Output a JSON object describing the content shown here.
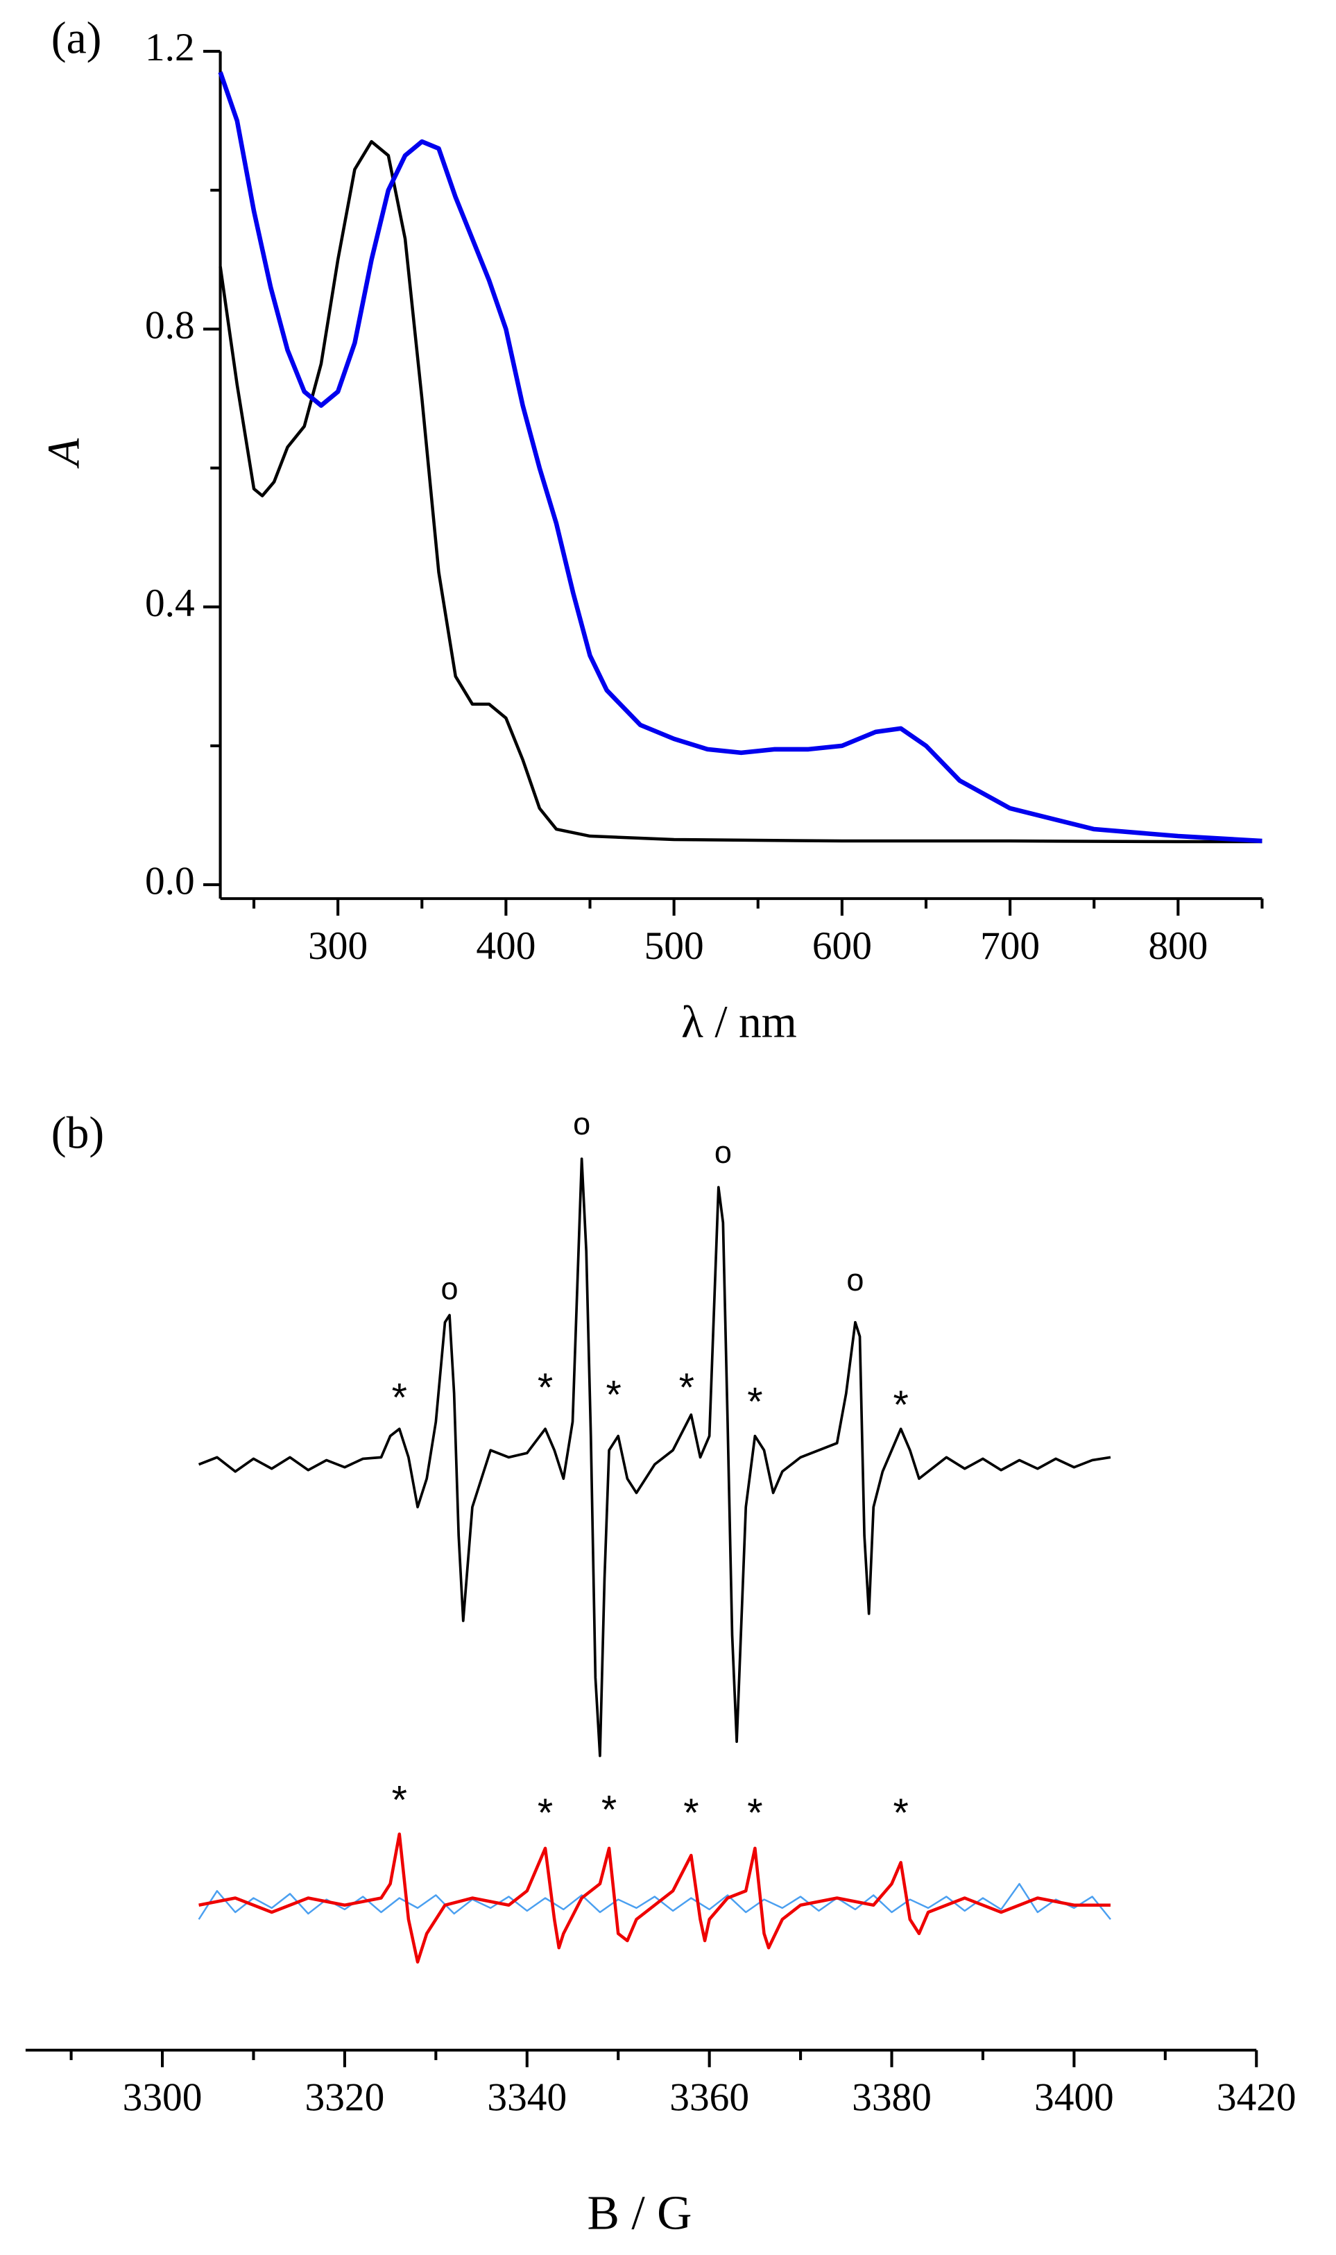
{
  "chart_data": [
    {
      "type": "line",
      "panel_label": "(a)",
      "xlabel": "λ / nm",
      "ylabel": "A",
      "xlim": [
        230,
        850
      ],
      "xticks": [
        300,
        400,
        500,
        600,
        700,
        800
      ],
      "xminor_ticks": [
        250,
        350,
        450,
        550,
        650,
        750,
        850
      ],
      "ylim": [
        -0.02,
        1.2
      ],
      "yticks": [
        {
          "value": 0,
          "label": "0.0"
        },
        0.4,
        0.8,
        1.2
      ],
      "yminor_ticks": [
        0.2,
        0.6,
        1.0
      ],
      "series": [
        {
          "color": "#000000",
          "width": 2.2,
          "x": [
            230,
            240,
            250,
            255,
            262,
            270,
            280,
            290,
            300,
            310,
            320,
            330,
            340,
            350,
            360,
            370,
            380,
            390,
            400,
            410,
            420,
            430,
            450,
            500,
            600,
            700,
            800,
            850
          ],
          "values": [
            0.89,
            0.72,
            0.57,
            0.56,
            0.58,
            0.63,
            0.66,
            0.75,
            0.9,
            1.03,
            1.07,
            1.05,
            0.93,
            0.7,
            0.45,
            0.3,
            0.26,
            0.26,
            0.24,
            0.18,
            0.11,
            0.08,
            0.07,
            0.065,
            0.063,
            0.063,
            0.062,
            0.062
          ]
        },
        {
          "color": "#0000ee",
          "width": 3.2,
          "x": [
            230,
            240,
            250,
            260,
            270,
            280,
            290,
            300,
            310,
            320,
            330,
            340,
            350,
            360,
            370,
            380,
            390,
            400,
            410,
            420,
            430,
            440,
            450,
            460,
            480,
            500,
            520,
            540,
            560,
            580,
            600,
            620,
            635,
            650,
            670,
            700,
            750,
            800,
            850
          ],
          "values": [
            1.17,
            1.1,
            0.97,
            0.86,
            0.77,
            0.71,
            0.69,
            0.71,
            0.78,
            0.9,
            1.0,
            1.05,
            1.07,
            1.06,
            0.99,
            0.93,
            0.87,
            0.8,
            0.69,
            0.6,
            0.52,
            0.42,
            0.33,
            0.28,
            0.23,
            0.21,
            0.195,
            0.19,
            0.195,
            0.195,
            0.2,
            0.22,
            0.225,
            0.2,
            0.15,
            0.11,
            0.08,
            0.07,
            0.063
          ]
        }
      ]
    },
    {
      "type": "line",
      "panel_label": "(b)",
      "xlabel": "B / G",
      "xlim": [
        3285,
        3420
      ],
      "xticks": [
        3300,
        3320,
        3340,
        3360,
        3380,
        3400,
        3420
      ],
      "xminor_ticks": [
        3290,
        3310,
        3330,
        3350,
        3370,
        3390,
        3410
      ],
      "ylim": [
        -3.7,
        2.5
      ],
      "series": [
        {
          "color": "#000000",
          "width": 1.8,
          "x": [
            3304,
            3306,
            3308,
            3310,
            3312,
            3314,
            3316,
            3318,
            3320,
            3322,
            3324,
            3325,
            3326,
            3327,
            3328,
            3329,
            3330,
            3331,
            3331.5,
            3332,
            3332.5,
            3333,
            3334,
            3335,
            3336,
            3338,
            3340,
            3342,
            3343,
            3344,
            3345,
            3346,
            3346.5,
            3347,
            3347.5,
            3348,
            3348.5,
            3349,
            3350,
            3351,
            3352,
            3354,
            3356,
            3358,
            3359,
            3360,
            3361,
            3361.5,
            3362,
            3362.5,
            3363,
            3364,
            3365,
            3366,
            3367,
            3368,
            3370,
            3372,
            3374,
            3375,
            3376,
            3376.5,
            3377,
            3377.5,
            3378,
            3379,
            3380,
            3381,
            3382,
            3383,
            3384,
            3386,
            3388,
            3390,
            3392,
            3394,
            3396,
            3398,
            3400,
            3402,
            3404
          ],
          "values": [
            0,
            0.05,
            -0.05,
            0.04,
            -0.03,
            0.05,
            -0.04,
            0.03,
            -0.02,
            0.04,
            0.05,
            0.2,
            0.25,
            0.05,
            -0.3,
            -0.1,
            0.3,
            1.0,
            1.05,
            0.5,
            -0.5,
            -1.1,
            -0.3,
            -0.1,
            0.1,
            0.05,
            0.08,
            0.25,
            0.1,
            -0.1,
            0.3,
            2.15,
            1.5,
            0.2,
            -1.5,
            -2.05,
            -0.8,
            0.1,
            0.2,
            -0.1,
            -0.2,
            0,
            0.1,
            0.35,
            0.05,
            0.2,
            1.95,
            1.7,
            0.3,
            -1.2,
            -1.95,
            -0.3,
            0.2,
            0.1,
            -0.2,
            -0.05,
            0.05,
            0.1,
            0.15,
            0.5,
            1.0,
            0.9,
            -0.5,
            -1.05,
            -0.3,
            -0.05,
            0.1,
            0.25,
            0.1,
            -0.1,
            -0.05,
            0.05,
            -0.03,
            0.04,
            -0.04,
            0.03,
            -0.03,
            0.04,
            -0.02,
            0.03,
            0.05
          ]
        },
        {
          "color": "#4a9ff0",
          "width": 1.2,
          "x": [
            3304,
            3306,
            3308,
            3310,
            3312,
            3314,
            3316,
            3318,
            3320,
            3322,
            3324,
            3326,
            3328,
            3330,
            3332,
            3334,
            3336,
            3338,
            3340,
            3342,
            3344,
            3346,
            3348,
            3350,
            3352,
            3354,
            3356,
            3358,
            3360,
            3362,
            3364,
            3366,
            3368,
            3370,
            3372,
            3374,
            3376,
            3378,
            3380,
            3382,
            3384,
            3386,
            3388,
            3390,
            3392,
            3394,
            3396,
            3398,
            3400,
            3402,
            3404
          ],
          "values": [
            -3.2,
            -3.0,
            -3.15,
            -3.05,
            -3.12,
            -3.02,
            -3.16,
            -3.06,
            -3.13,
            -3.04,
            -3.15,
            -3.05,
            -3.12,
            -3.03,
            -3.16,
            -3.06,
            -3.12,
            -3.04,
            -3.14,
            -3.05,
            -3.13,
            -3.03,
            -3.15,
            -3.06,
            -3.12,
            -3.04,
            -3.14,
            -3.05,
            -3.13,
            -3.03,
            -3.15,
            -3.06,
            -3.12,
            -3.04,
            -3.14,
            -3.05,
            -3.13,
            -3.03,
            -3.15,
            -3.06,
            -3.12,
            -3.04,
            -3.14,
            -3.05,
            -3.13,
            -2.95,
            -3.15,
            -3.06,
            -3.12,
            -3.04,
            -3.2
          ]
        },
        {
          "color": "#ee0000",
          "width": 2.2,
          "x": [
            3304,
            3308,
            3312,
            3316,
            3320,
            3324,
            3325,
            3326,
            3327,
            3328,
            3329,
            3331,
            3334,
            3338,
            3340,
            3341,
            3342,
            3343,
            3343.5,
            3344,
            3346,
            3348,
            3349,
            3350,
            3351,
            3352,
            3354,
            3356,
            3358,
            3359,
            3359.5,
            3360,
            3362,
            3364,
            3365,
            3366,
            3366.5,
            3368,
            3370,
            3374,
            3378,
            3380,
            3381,
            3382,
            3383,
            3384,
            3388,
            3392,
            3396,
            3400,
            3404
          ],
          "values": [
            -3.1,
            -3.05,
            -3.15,
            -3.05,
            -3.1,
            -3.05,
            -2.95,
            -2.6,
            -3.2,
            -3.5,
            -3.3,
            -3.1,
            -3.05,
            -3.1,
            -3.0,
            -2.85,
            -2.7,
            -3.2,
            -3.4,
            -3.3,
            -3.05,
            -2.95,
            -2.7,
            -3.3,
            -3.35,
            -3.2,
            -3.1,
            -3.0,
            -2.75,
            -3.2,
            -3.35,
            -3.2,
            -3.05,
            -3.0,
            -2.7,
            -3.3,
            -3.4,
            -3.2,
            -3.1,
            -3.05,
            -3.1,
            -2.95,
            -2.8,
            -3.2,
            -3.3,
            -3.15,
            -3.05,
            -3.15,
            -3.05,
            -3.1,
            -3.1
          ]
        }
      ],
      "annotations": [
        {
          "text": "*",
          "x": 3326,
          "y": 0.45
        },
        {
          "text": "o",
          "x": 3331.5,
          "y": 1.22
        },
        {
          "text": "*",
          "x": 3342,
          "y": 0.52
        },
        {
          "text": "o",
          "x": 3346,
          "y": 2.38
        },
        {
          "text": "*",
          "x": 3349.5,
          "y": 0.47
        },
        {
          "text": "*",
          "x": 3357.5,
          "y": 0.52
        },
        {
          "text": "o",
          "x": 3361.5,
          "y": 2.18
        },
        {
          "text": "*",
          "x": 3365,
          "y": 0.42
        },
        {
          "text": "o",
          "x": 3376,
          "y": 1.28
        },
        {
          "text": "*",
          "x": 3381,
          "y": 0.4
        },
        {
          "text": "*",
          "x": 3326,
          "y": -2.38
        },
        {
          "text": "*",
          "x": 3342,
          "y": -2.47
        },
        {
          "text": "*",
          "x": 3349,
          "y": -2.45
        },
        {
          "text": "*",
          "x": 3358,
          "y": -2.47
        },
        {
          "text": "*",
          "x": 3365,
          "y": -2.47
        },
        {
          "text": "*",
          "x": 3381,
          "y": -2.47
        }
      ]
    }
  ]
}
